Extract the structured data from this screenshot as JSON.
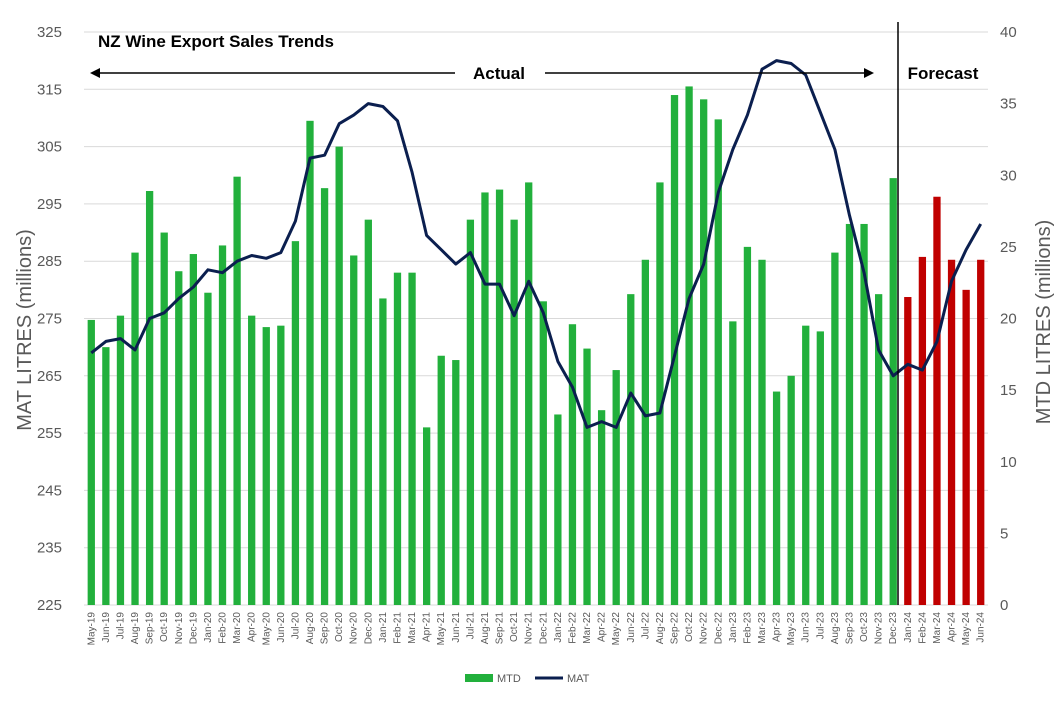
{
  "chart_data": {
    "type": "bar+line",
    "title": "NZ Wine Export Sales Trends",
    "annotations": {
      "actual": "Actual",
      "forecast": "Forecast"
    },
    "ylabel_left": "MAT LITRES (millions)",
    "ylabel_right": "MTD LITRES (millions)",
    "ylim_left": [
      225,
      325
    ],
    "ylim_right": [
      0,
      40
    ],
    "yticks_left": [
      "325",
      "315",
      "305",
      "295",
      "285",
      "275",
      "265",
      "255",
      "245",
      "235",
      "225"
    ],
    "yticks_right": [
      "40",
      "35",
      "30",
      "25",
      "20",
      "15",
      "10",
      "5",
      "0"
    ],
    "legend": {
      "mtd": "MTD",
      "mat": "MAT"
    },
    "colors": {
      "actual": "#22b03c",
      "forecast": "#c00000",
      "line": "#0b1f4f"
    },
    "forecast_start_index": 56,
    "categories": [
      "May-19",
      "Jun-19",
      "Jul-19",
      "Aug-19",
      "Sep-19",
      "Oct-19",
      "Nov-19",
      "Dec-19",
      "Jan-20",
      "Feb-20",
      "Mar-20",
      "Apr-20",
      "May-20",
      "Jun-20",
      "Jul-20",
      "Aug-20",
      "Sep-20",
      "Oct-20",
      "Nov-20",
      "Dec-20",
      "Jan-21",
      "Feb-21",
      "Mar-21",
      "Apr-21",
      "May-21",
      "Jun-21",
      "Jul-21",
      "Aug-21",
      "Sep-21",
      "Oct-21",
      "Nov-21",
      "Dec-21",
      "Jan-22",
      "Feb-22",
      "Mar-22",
      "Apr-22",
      "May-22",
      "Jun-22",
      "Jul-22",
      "Aug-22",
      "Sep-22",
      "Oct-22",
      "Nov-22",
      "Dec-22",
      "Jan-23",
      "Feb-23",
      "Mar-23",
      "Apr-23",
      "May-23",
      "Jun-23",
      "Jul-23",
      "Aug-23",
      "Sep-23",
      "Oct-23",
      "Nov-23",
      "Dec-23",
      "Jan-24",
      "Feb-24",
      "Mar-24",
      "Apr-24",
      "May-24",
      "Jun-24"
    ],
    "series": [
      {
        "name": "MTD",
        "axis": "right",
        "type": "bar",
        "values": [
          19.9,
          18.0,
          20.2,
          24.6,
          28.9,
          26.0,
          23.3,
          24.5,
          21.8,
          25.1,
          29.9,
          20.2,
          19.4,
          19.5,
          25.4,
          33.8,
          29.1,
          32.0,
          24.4,
          26.9,
          21.4,
          23.2,
          23.2,
          12.4,
          17.4,
          17.1,
          26.9,
          28.8,
          29.0,
          26.9,
          29.5,
          21.2,
          13.3,
          19.6,
          17.9,
          13.6,
          16.4,
          21.7,
          24.1,
          29.5,
          35.6,
          36.2,
          35.3,
          33.9,
          19.8,
          25.0,
          24.1,
          14.9,
          16.0,
          19.5,
          19.1,
          24.6,
          26.6,
          26.6,
          21.7,
          29.8,
          21.5,
          24.3,
          28.5,
          24.1,
          22.0,
          24.1
        ]
      },
      {
        "name": "MAT",
        "axis": "left",
        "type": "line",
        "values": [
          269.0,
          271.0,
          271.5,
          269.5,
          275.0,
          276.0,
          278.5,
          280.5,
          283.5,
          283.0,
          285.0,
          286.0,
          285.5,
          286.5,
          292.0,
          303.0,
          303.5,
          309.0,
          310.5,
          312.5,
          312.0,
          309.5,
          300.5,
          289.5,
          287.0,
          284.5,
          286.5,
          281.0,
          281.0,
          275.5,
          281.5,
          276.0,
          267.5,
          263.0,
          256.0,
          257.0,
          256.0,
          262.0,
          258.0,
          258.5,
          268.5,
          278.5,
          284.5,
          297.0,
          304.5,
          310.5,
          318.5,
          320.0,
          319.5,
          317.5,
          311.0,
          304.5,
          293.0,
          283.0,
          269.5,
          265.0,
          267.0,
          266.0,
          271.0,
          281.5,
          287.0,
          291.5
        ]
      }
    ]
  }
}
